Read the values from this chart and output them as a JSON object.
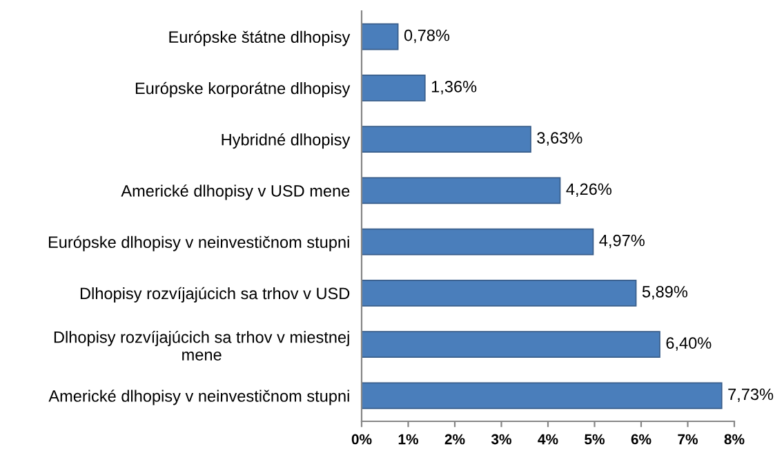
{
  "chart_data": {
    "type": "bar",
    "orientation": "horizontal",
    "categories": [
      "Európske štátne dlhopisy",
      "Európske korporátne dlhopisy",
      "Hybridné dlhopisy",
      "Americké dlhopisy v USD mene",
      "Európske dlhopisy v neinvestičnom stupni",
      "Dlhopisy rozvíjajúcich sa trhov v USD",
      "Dlhopisy rozvíjajúcich sa trhov v miestnej\nmene",
      "Americké dlhopisy v neinvestičnom stupni"
    ],
    "values": [
      0.78,
      1.36,
      3.63,
      4.26,
      4.97,
      5.89,
      6.4,
      7.73
    ],
    "value_labels": [
      "0,78%",
      "1,36%",
      "3,63%",
      "4,26%",
      "4,97%",
      "5,89%",
      "6,40%",
      "7,73%"
    ],
    "color": "#4a7ebb",
    "xlim": [
      0,
      8
    ],
    "xticks": [
      {
        "value": 0,
        "label": "0%"
      },
      {
        "value": 1,
        "label": "1%"
      },
      {
        "value": 2,
        "label": "2%"
      },
      {
        "value": 3,
        "label": "3%"
      },
      {
        "value": 4,
        "label": "4%"
      },
      {
        "value": 5,
        "label": "5%"
      },
      {
        "value": 6,
        "label": "6%"
      },
      {
        "value": 7,
        "label": "7%"
      },
      {
        "value": 8,
        "label": "8%"
      }
    ],
    "grid": false,
    "legend": false
  }
}
